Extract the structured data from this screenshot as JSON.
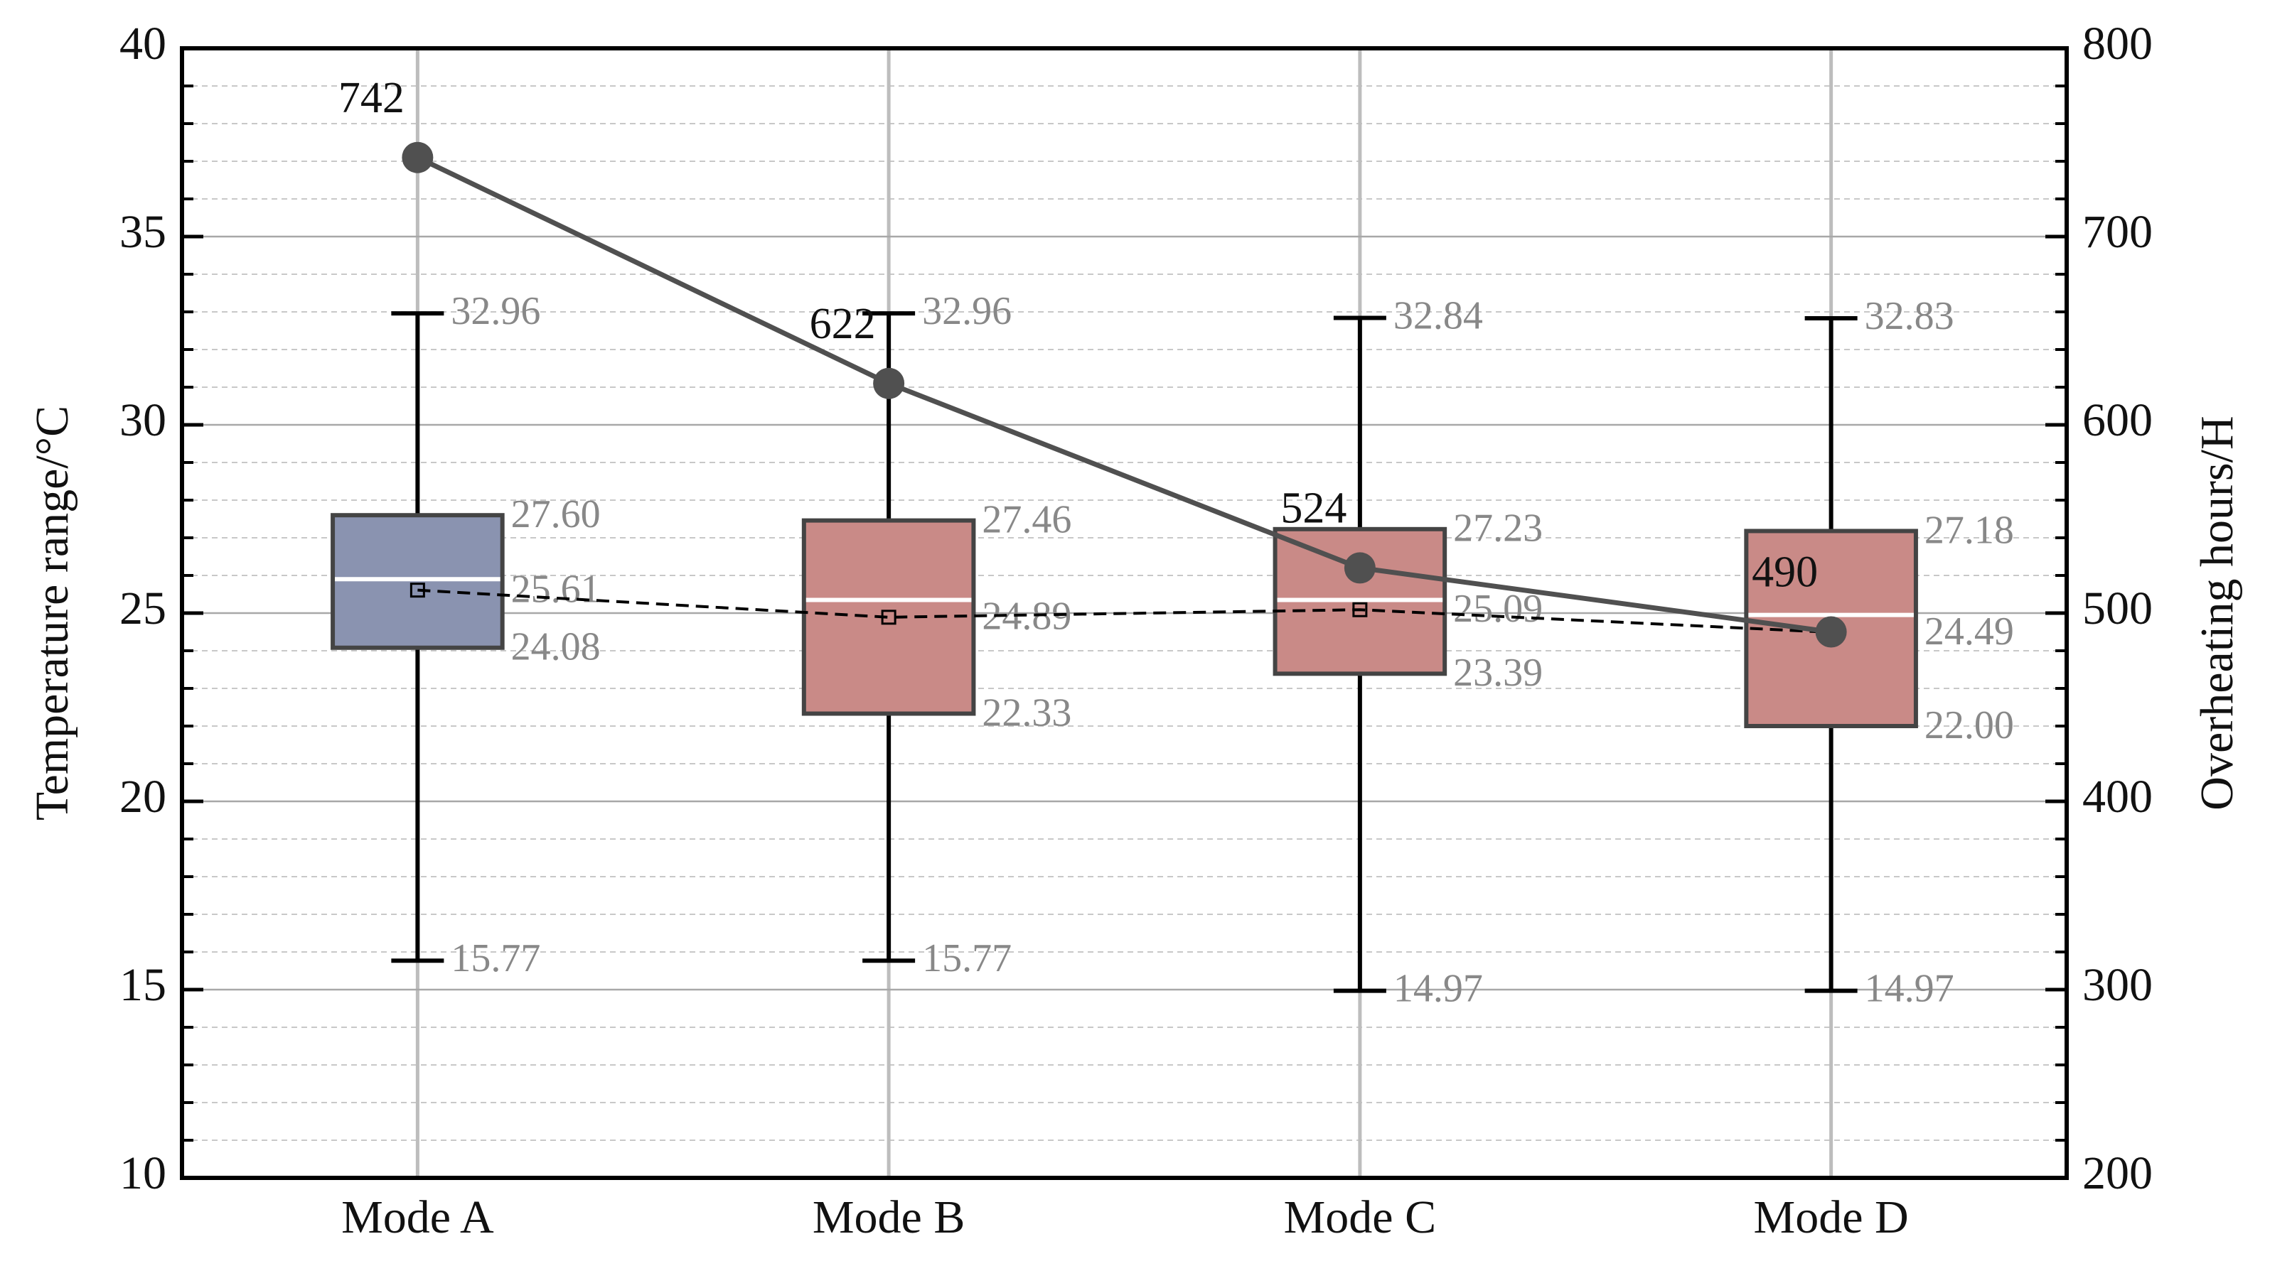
{
  "chart_data": {
    "type": "box",
    "categories": [
      "Mode A",
      "Mode B",
      "Mode C",
      "Mode D"
    ],
    "ylabel": "Temperature range/°C",
    "y2label": "Overheating hours/H",
    "ylim": [
      10,
      40
    ],
    "yticks": [
      10,
      15,
      20,
      25,
      30,
      35,
      40
    ],
    "y2lim": [
      200,
      800
    ],
    "y2ticks": [
      200,
      300,
      400,
      500,
      600,
      700,
      800
    ],
    "grid": true,
    "minor_grid": true,
    "box_colors": [
      "#8a93b0",
      "#c98a87",
      "#c98a87",
      "#c98a87"
    ],
    "boxes": {
      "max": {
        "values": [
          32.96,
          32.96,
          32.84,
          32.83
        ],
        "value_labels": [
          "32.96",
          "32.96",
          "32.84",
          "32.83"
        ]
      },
      "q3": {
        "values": [
          27.6,
          27.46,
          27.23,
          27.18
        ],
        "value_labels": [
          "27.60",
          "27.46",
          "27.23",
          "27.18"
        ]
      },
      "median": {
        "values": [
          25.9,
          25.35,
          25.35,
          24.95
        ]
      },
      "mean": {
        "values": [
          25.61,
          24.89,
          25.09,
          24.49
        ],
        "value_labels": [
          "25.61",
          "24.89",
          "25.09",
          "24.49"
        ]
      },
      "q1": {
        "values": [
          24.08,
          22.33,
          23.39,
          22.0
        ],
        "value_labels": [
          "24.08",
          "22.33",
          "23.39",
          "22.00"
        ]
      },
      "min": {
        "values": [
          15.77,
          15.77,
          14.97,
          14.97
        ],
        "value_labels": [
          "15.77",
          "15.77",
          "14.97",
          "14.97"
        ]
      }
    },
    "line": {
      "axis": "y2",
      "color": "#505050",
      "values": [
        742,
        622,
        524,
        490
      ]
    }
  }
}
